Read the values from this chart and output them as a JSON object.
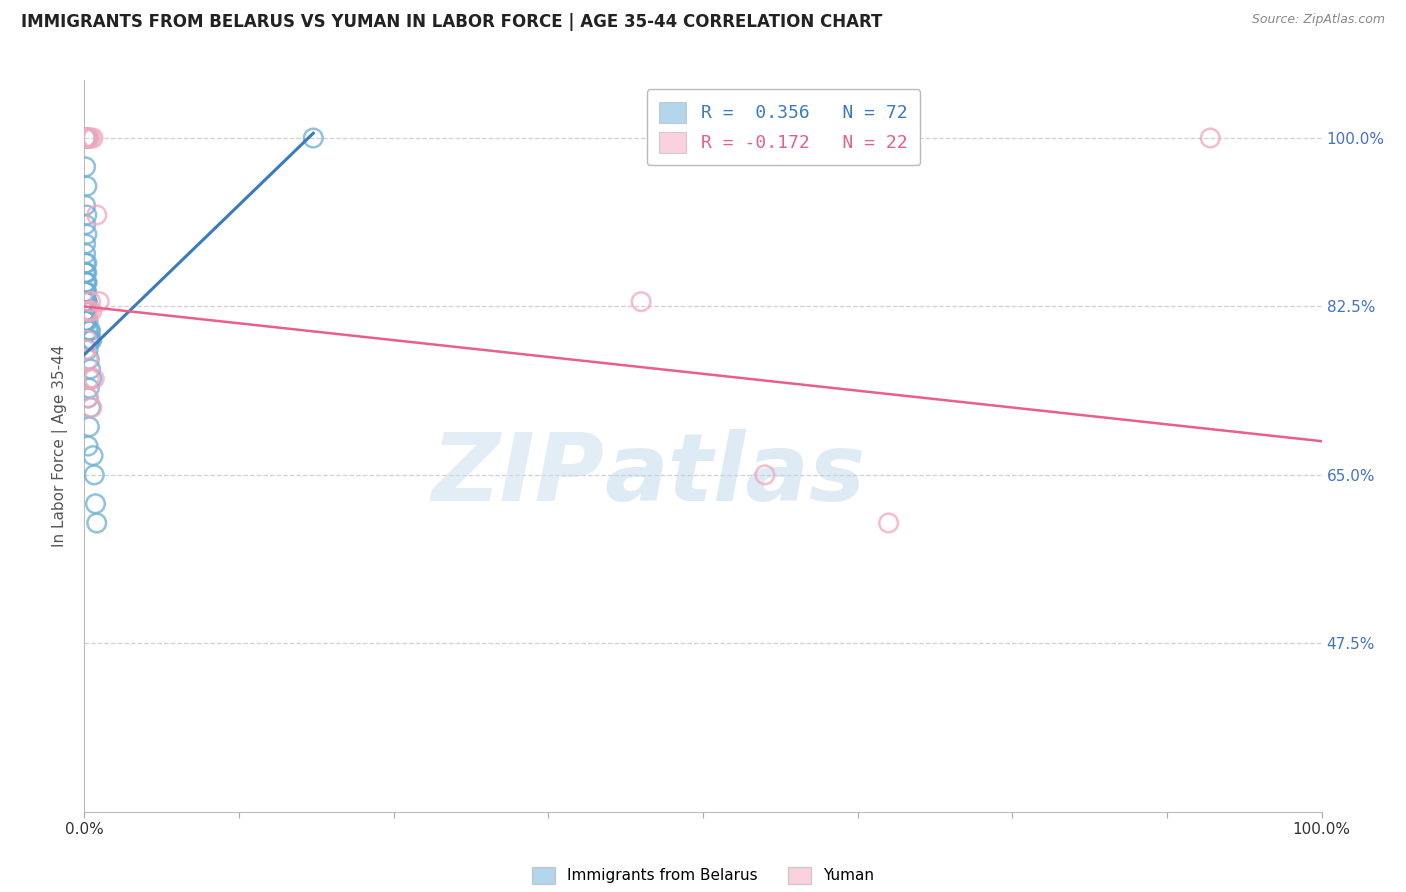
{
  "title": "IMMIGRANTS FROM BELARUS VS YUMAN IN LABOR FORCE | AGE 35-44 CORRELATION CHART",
  "source": "Source: ZipAtlas.com",
  "ylabel": "In Labor Force | Age 35-44",
  "xlim": [
    0.0,
    1.0
  ],
  "ylim": [
    0.3,
    1.06
  ],
  "ytick_labels": [
    "100.0%",
    "82.5%",
    "65.0%",
    "47.5%"
  ],
  "ytick_values": [
    1.0,
    0.825,
    0.65,
    0.475
  ],
  "legend_r_blue": "R =  0.356",
  "legend_n_blue": "N = 72",
  "legend_r_pink": "R = -0.172",
  "legend_n_pink": "N = 22",
  "blue_color": "#6baed6",
  "pink_color": "#f4a6bc",
  "blue_line_color": "#3a7abf",
  "pink_line_color": "#e8608a",
  "watermark_zip": "ZIP",
  "watermark_atlas": "atlas",
  "legend_label_blue": "Immigrants from Belarus",
  "legend_label_pink": "Yuman",
  "blue_scatter_x": [
    0.001,
    0.002,
    0.003,
    0.001,
    0.002,
    0.001,
    0.002,
    0.001,
    0.002,
    0.001,
    0.001,
    0.002,
    0.001,
    0.002,
    0.001,
    0.001,
    0.002,
    0.001,
    0.002,
    0.001,
    0.001,
    0.002,
    0.001,
    0.002,
    0.001,
    0.001,
    0.002,
    0.001,
    0.001,
    0.002,
    0.001,
    0.001,
    0.002,
    0.001,
    0.001,
    0.001,
    0.001,
    0.001,
    0.001,
    0.001,
    0.001,
    0.001,
    0.001,
    0.001,
    0.001,
    0.001,
    0.001,
    0.001,
    0.001,
    0.001,
    0.003,
    0.004,
    0.005,
    0.003,
    0.004,
    0.006,
    0.004,
    0.005,
    0.003,
    0.004,
    0.005,
    0.006,
    0.004,
    0.003,
    0.005,
    0.004,
    0.003,
    0.007,
    0.008,
    0.185,
    0.009,
    0.01
  ],
  "blue_scatter_y": [
    1.0,
    1.0,
    1.0,
    0.97,
    0.95,
    0.93,
    0.92,
    0.91,
    0.9,
    0.89,
    0.88,
    0.87,
    0.87,
    0.86,
    0.86,
    0.86,
    0.85,
    0.85,
    0.85,
    0.84,
    0.84,
    0.84,
    0.84,
    0.83,
    0.83,
    0.83,
    0.83,
    0.83,
    0.83,
    0.83,
    0.83,
    0.83,
    0.83,
    0.83,
    0.82,
    0.82,
    0.82,
    0.82,
    0.82,
    0.82,
    0.82,
    0.82,
    0.82,
    0.82,
    0.82,
    0.82,
    0.81,
    0.81,
    0.81,
    0.81,
    0.81,
    0.8,
    0.8,
    0.8,
    0.79,
    0.79,
    0.79,
    0.79,
    0.78,
    0.77,
    0.76,
    0.75,
    0.74,
    0.73,
    0.72,
    0.7,
    0.68,
    0.67,
    0.65,
    1.0,
    0.62,
    0.6
  ],
  "pink_scatter_x": [
    0.001,
    0.002,
    0.003,
    0.005,
    0.007,
    0.01,
    0.012,
    0.004,
    0.006,
    0.002,
    0.003,
    0.001,
    0.004,
    0.006,
    0.003,
    0.002,
    0.005,
    0.008,
    0.45,
    0.55,
    0.65,
    0.91
  ],
  "pink_scatter_y": [
    1.0,
    1.0,
    1.0,
    1.0,
    1.0,
    0.92,
    0.83,
    0.82,
    0.82,
    0.79,
    0.77,
    0.78,
    0.75,
    0.72,
    0.73,
    0.82,
    0.83,
    0.75,
    0.83,
    0.65,
    0.6,
    1.0
  ],
  "blue_trendline_x": [
    0.0,
    0.185
  ],
  "blue_trendline_y": [
    0.775,
    1.005
  ],
  "pink_trendline_x": [
    0.0,
    1.0
  ],
  "pink_trendline_y": [
    0.825,
    0.685
  ],
  "background_color": "#ffffff",
  "grid_color": "#d0d0d0",
  "title_color": "#222222",
  "axis_label_color": "#555555",
  "right_tick_color": "#4472c4",
  "bottom_tick_color": "#333333"
}
